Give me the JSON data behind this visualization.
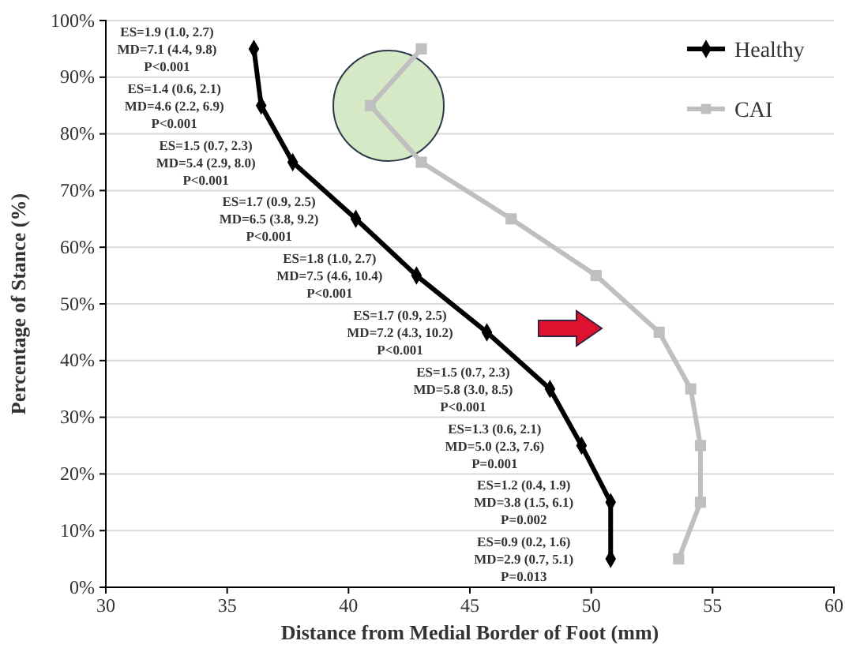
{
  "chart_data": {
    "type": "line",
    "xlabel": "Distance from Medial Border of Foot (mm)",
    "ylabel": "Percentage of Stance (%)",
    "xlim": [
      30,
      60
    ],
    "xticks": [
      30,
      35,
      40,
      45,
      50,
      55,
      60
    ],
    "ylim": [
      0,
      100
    ],
    "yticks": [
      {
        "value": 0,
        "label": "0%"
      },
      {
        "value": 10,
        "label": "10%"
      },
      {
        "value": 20,
        "label": "20%"
      },
      {
        "value": 30,
        "label": "30%"
      },
      {
        "value": 40,
        "label": "40%"
      },
      {
        "value": 50,
        "label": "50%"
      },
      {
        "value": 60,
        "label": "60%"
      },
      {
        "value": 70,
        "label": "70%"
      },
      {
        "value": 80,
        "label": "80%"
      },
      {
        "value": 90,
        "label": "90%"
      },
      {
        "value": 100,
        "label": "100%"
      }
    ],
    "grid": "y",
    "legend": "top right",
    "line_style": "solid",
    "series": [
      {
        "name": "Healthy",
        "color": "#000000",
        "marker": "diamond",
        "x": [
          36.1,
          36.4,
          37.7,
          40.3,
          42.8,
          45.7,
          48.3,
          49.6,
          50.8,
          50.8
        ],
        "values": [
          95,
          85,
          75,
          65,
          55,
          45,
          35,
          25,
          15,
          5
        ]
      },
      {
        "name": "CAI",
        "color": "#bfbfbf",
        "marker": "square",
        "x": [
          43.0,
          40.9,
          43.0,
          46.7,
          50.2,
          52.8,
          54.1,
          54.5,
          54.5,
          53.6
        ],
        "values": [
          95,
          85,
          75,
          65,
          55,
          45,
          35,
          25,
          15,
          5
        ]
      }
    ],
    "annotations": [
      {
        "text": "ES=1.9 (1.0, 2.7)\nMD=7.1 (4.4, 9.8)\nP<0.001",
        "x": 36.1,
        "y": 95
      },
      {
        "text": "ES=1.4 (0.6, 2.1)\nMD=4.6 (2.2, 6.9)\nP<0.001",
        "x": 36.4,
        "y": 85
      },
      {
        "text": "ES=1.5 (0.7, 2.3)\nMD=5.4 (2.9, 8.0)\nP<0.001",
        "x": 37.7,
        "y": 75
      },
      {
        "text": "ES=1.7 (0.9, 2.5)\nMD=6.5 (3.8, 9.2)\nP<0.001",
        "x": 40.3,
        "y": 65
      },
      {
        "text": "ES=1.8 (1.0, 2.7)\nMD=7.5 (4.6, 10.4)\nP<0.001",
        "x": 42.8,
        "y": 55
      },
      {
        "text": "ES=1.7 (0.9, 2.5)\nMD=7.2 (4.3, 10.2)\nP<0.001",
        "x": 45.7,
        "y": 45
      },
      {
        "text": "ES=1.5 (0.7, 2.3)\nMD=5.8 (3.0, 8.5)\nP<0.001",
        "x": 48.3,
        "y": 35
      },
      {
        "text": "ES=1.3 (0.6, 2.1)\nMD=5.0 (2.3, 7.6)\nP=0.001",
        "x": 49.6,
        "y": 25
      },
      {
        "text": "ES=1.2 (0.4, 1.9)\nMD=3.8 (1.5, 6.1)\nP=0.002",
        "x": 50.8,
        "y": 15
      },
      {
        "text": "ES=0.9 (0.2, 1.6)\nMD=2.9 (0.7, 5.1)\nP=0.013",
        "x": 50.8,
        "y": 5
      }
    ]
  }
}
